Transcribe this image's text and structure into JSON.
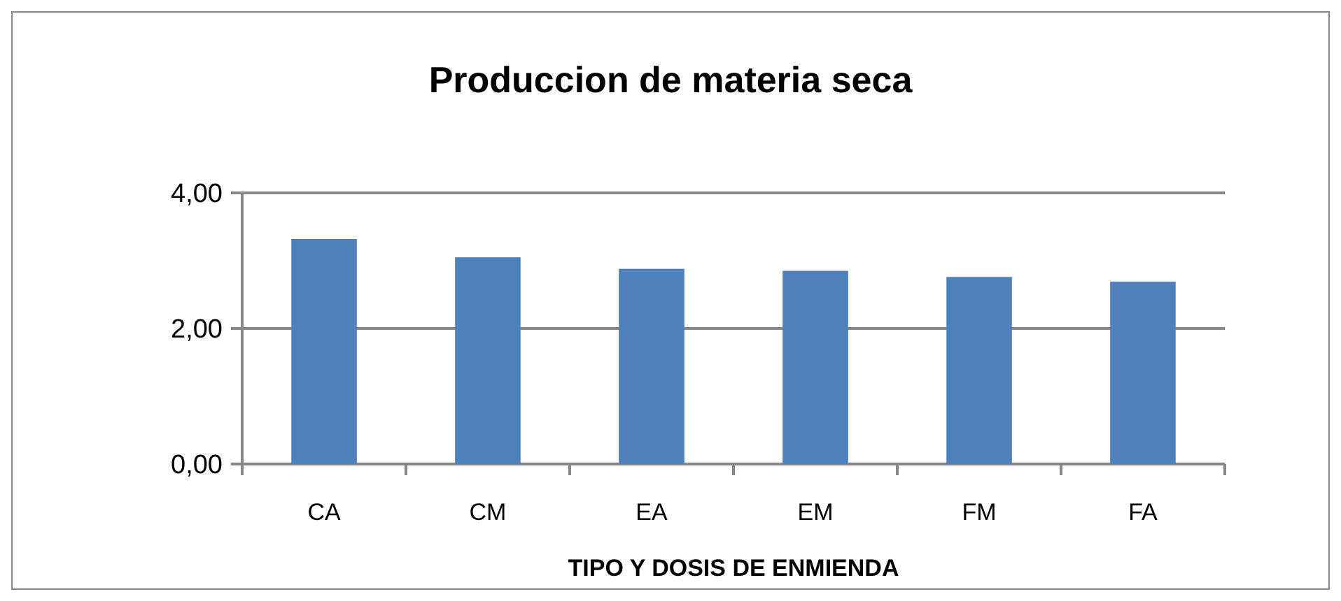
{
  "chart_data": {
    "type": "bar",
    "title": "Produccion de materia seca",
    "xlabel": "TIPO Y DOSIS DE ENMIENDA",
    "categories": [
      "CA",
      "CM",
      "EA",
      "EM",
      "FM",
      "FA"
    ],
    "values": [
      3.32,
      3.05,
      2.88,
      2.85,
      2.76,
      2.69
    ],
    "color": "#4f81bd",
    "ylim": [
      0,
      4
    ],
    "yticks": [
      {
        "value": 0,
        "label": "0,00"
      },
      {
        "value": 2,
        "label": "2,00"
      },
      {
        "value": 4,
        "label": "4,00"
      }
    ],
    "grid": "y"
  }
}
